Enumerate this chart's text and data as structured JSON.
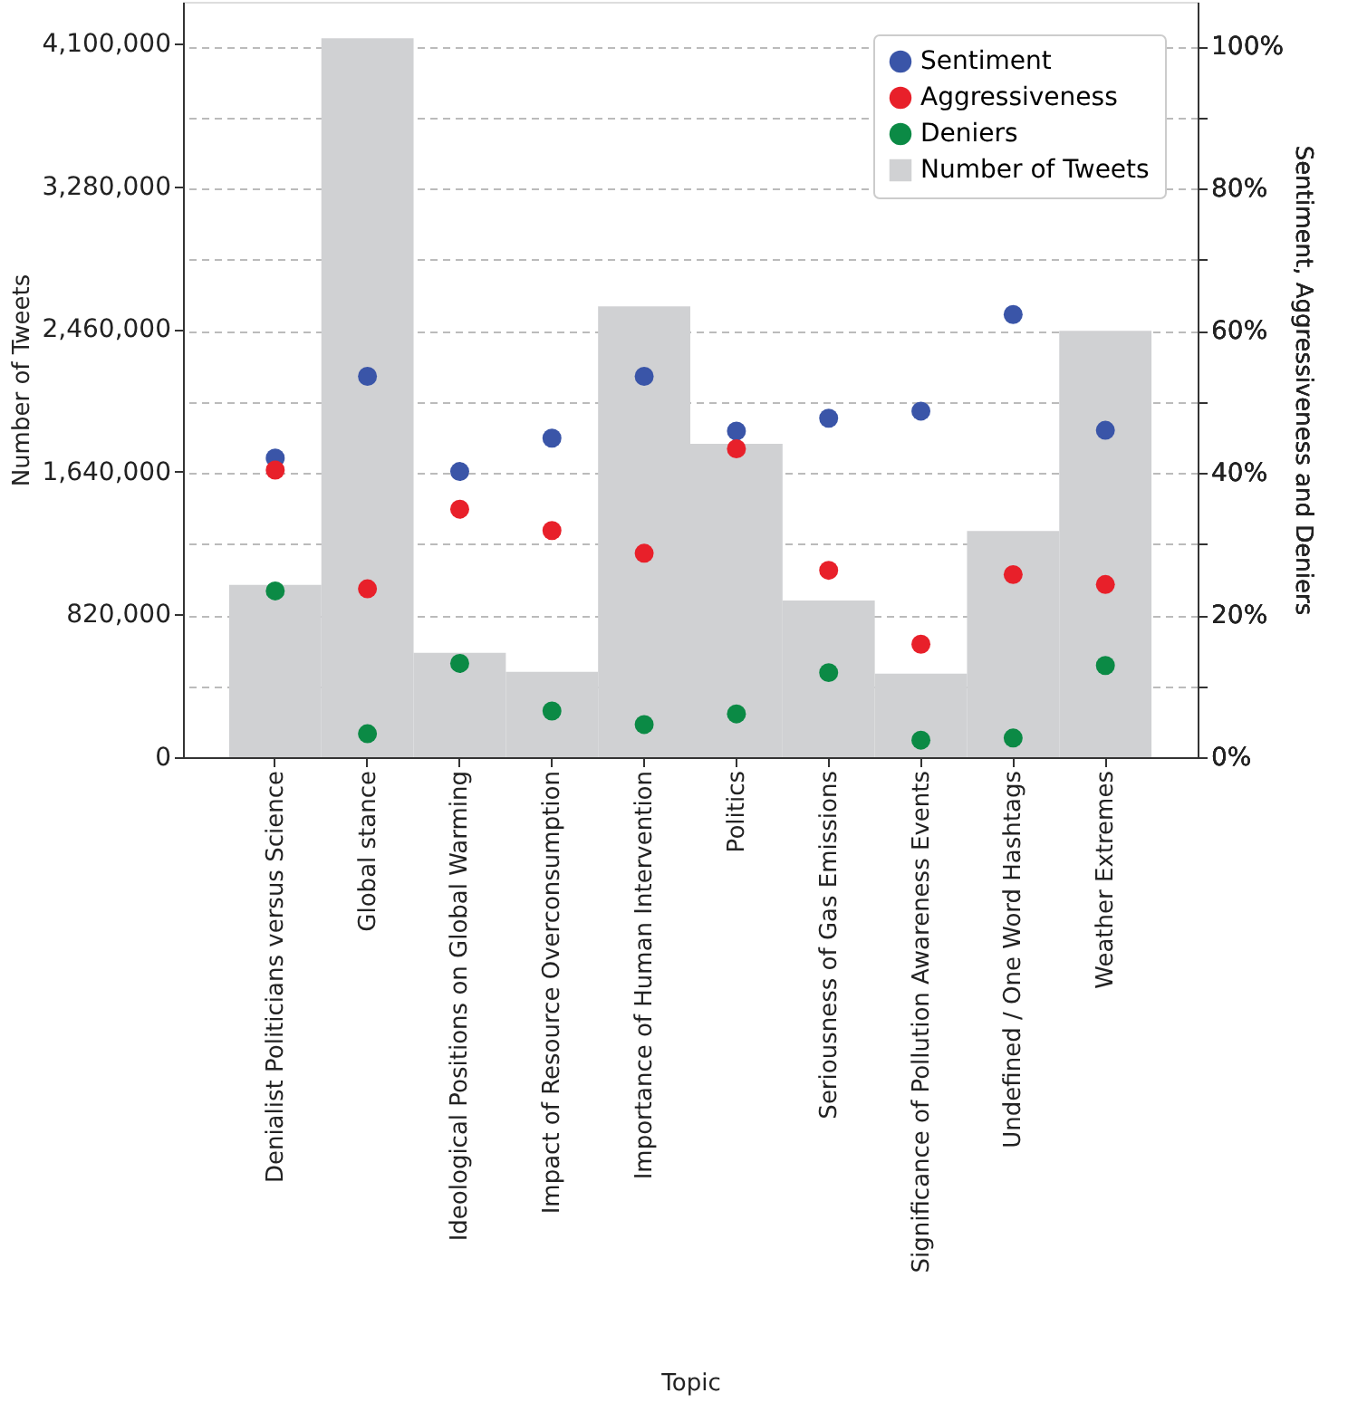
{
  "chart_data": {
    "type": "bar",
    "xlabel": "Topic",
    "ylabel": "Number of Tweets",
    "y2label": "Sentiment, Aggressiveness and Deniers",
    "categories": [
      "Denialist Politicians versus Science",
      "Global stance",
      "Ideological Positions on Global Warming",
      "Impact of Resource Overconsumption",
      "Importance of Human Intervention",
      "Politics",
      "Seriousness of Gas Emissions",
      "Significance of Pollution Awareness Events",
      "Undefined / One Word Hashtags",
      "Weather Extremes"
    ],
    "series": [
      {
        "name": "Number of Tweets",
        "axis": "y",
        "color": "#d0d1d3",
        "values": [
          990000,
          4130000,
          600000,
          490000,
          2590000,
          1800000,
          900000,
          480000,
          1300000,
          2450000
        ]
      },
      {
        "name": "Sentiment",
        "type": "scatter",
        "axis": "y2",
        "color": "#3a55a8",
        "values": [
          42.1,
          53.6,
          40.2,
          44.9,
          53.6,
          45.9,
          47.7,
          48.7,
          62.3,
          46.0
        ]
      },
      {
        "name": "Aggressiveness",
        "type": "scatter",
        "axis": "y2",
        "color": "#e8202a",
        "values": [
          40.4,
          23.7,
          34.9,
          31.9,
          28.7,
          43.4,
          26.3,
          15.9,
          25.7,
          24.3
        ]
      },
      {
        "name": "Deniers",
        "type": "scatter",
        "axis": "y2",
        "color": "#0b8a45",
        "values": [
          23.4,
          3.3,
          13.2,
          6.5,
          4.6,
          6.1,
          11.9,
          2.4,
          2.7,
          12.9
        ]
      }
    ],
    "ylim": [
      0,
      4340000
    ],
    "yticks": [
      0,
      {
        "value": 820000,
        "label": "820,000"
      },
      {
        "value": 1640000,
        "label": "1,640,000"
      },
      {
        "value": 2460000,
        "label": "2,460,000"
      },
      {
        "value": 3280000,
        "label": "3,280,000"
      },
      {
        "value": 4100000,
        "label": "4,100,000"
      }
    ],
    "y2lim": [
      0,
      106.3
    ],
    "y2ticks": [
      {
        "value": 0,
        "label": "0%"
      },
      {
        "value": 10,
        "label": null
      },
      {
        "value": 20,
        "label": "20%"
      },
      {
        "value": 30,
        "label": null
      },
      {
        "value": 40,
        "label": "40%"
      },
      {
        "value": 50,
        "label": null
      },
      {
        "value": 60,
        "label": "60%"
      },
      {
        "value": 70,
        "label": null
      },
      {
        "value": 80,
        "label": "80%"
      },
      {
        "value": 90,
        "label": null
      },
      {
        "value": 100,
        "label": "100%"
      }
    ],
    "grid": "y2",
    "line_style": "dashed",
    "marker": "circle",
    "legend": "top right"
  }
}
